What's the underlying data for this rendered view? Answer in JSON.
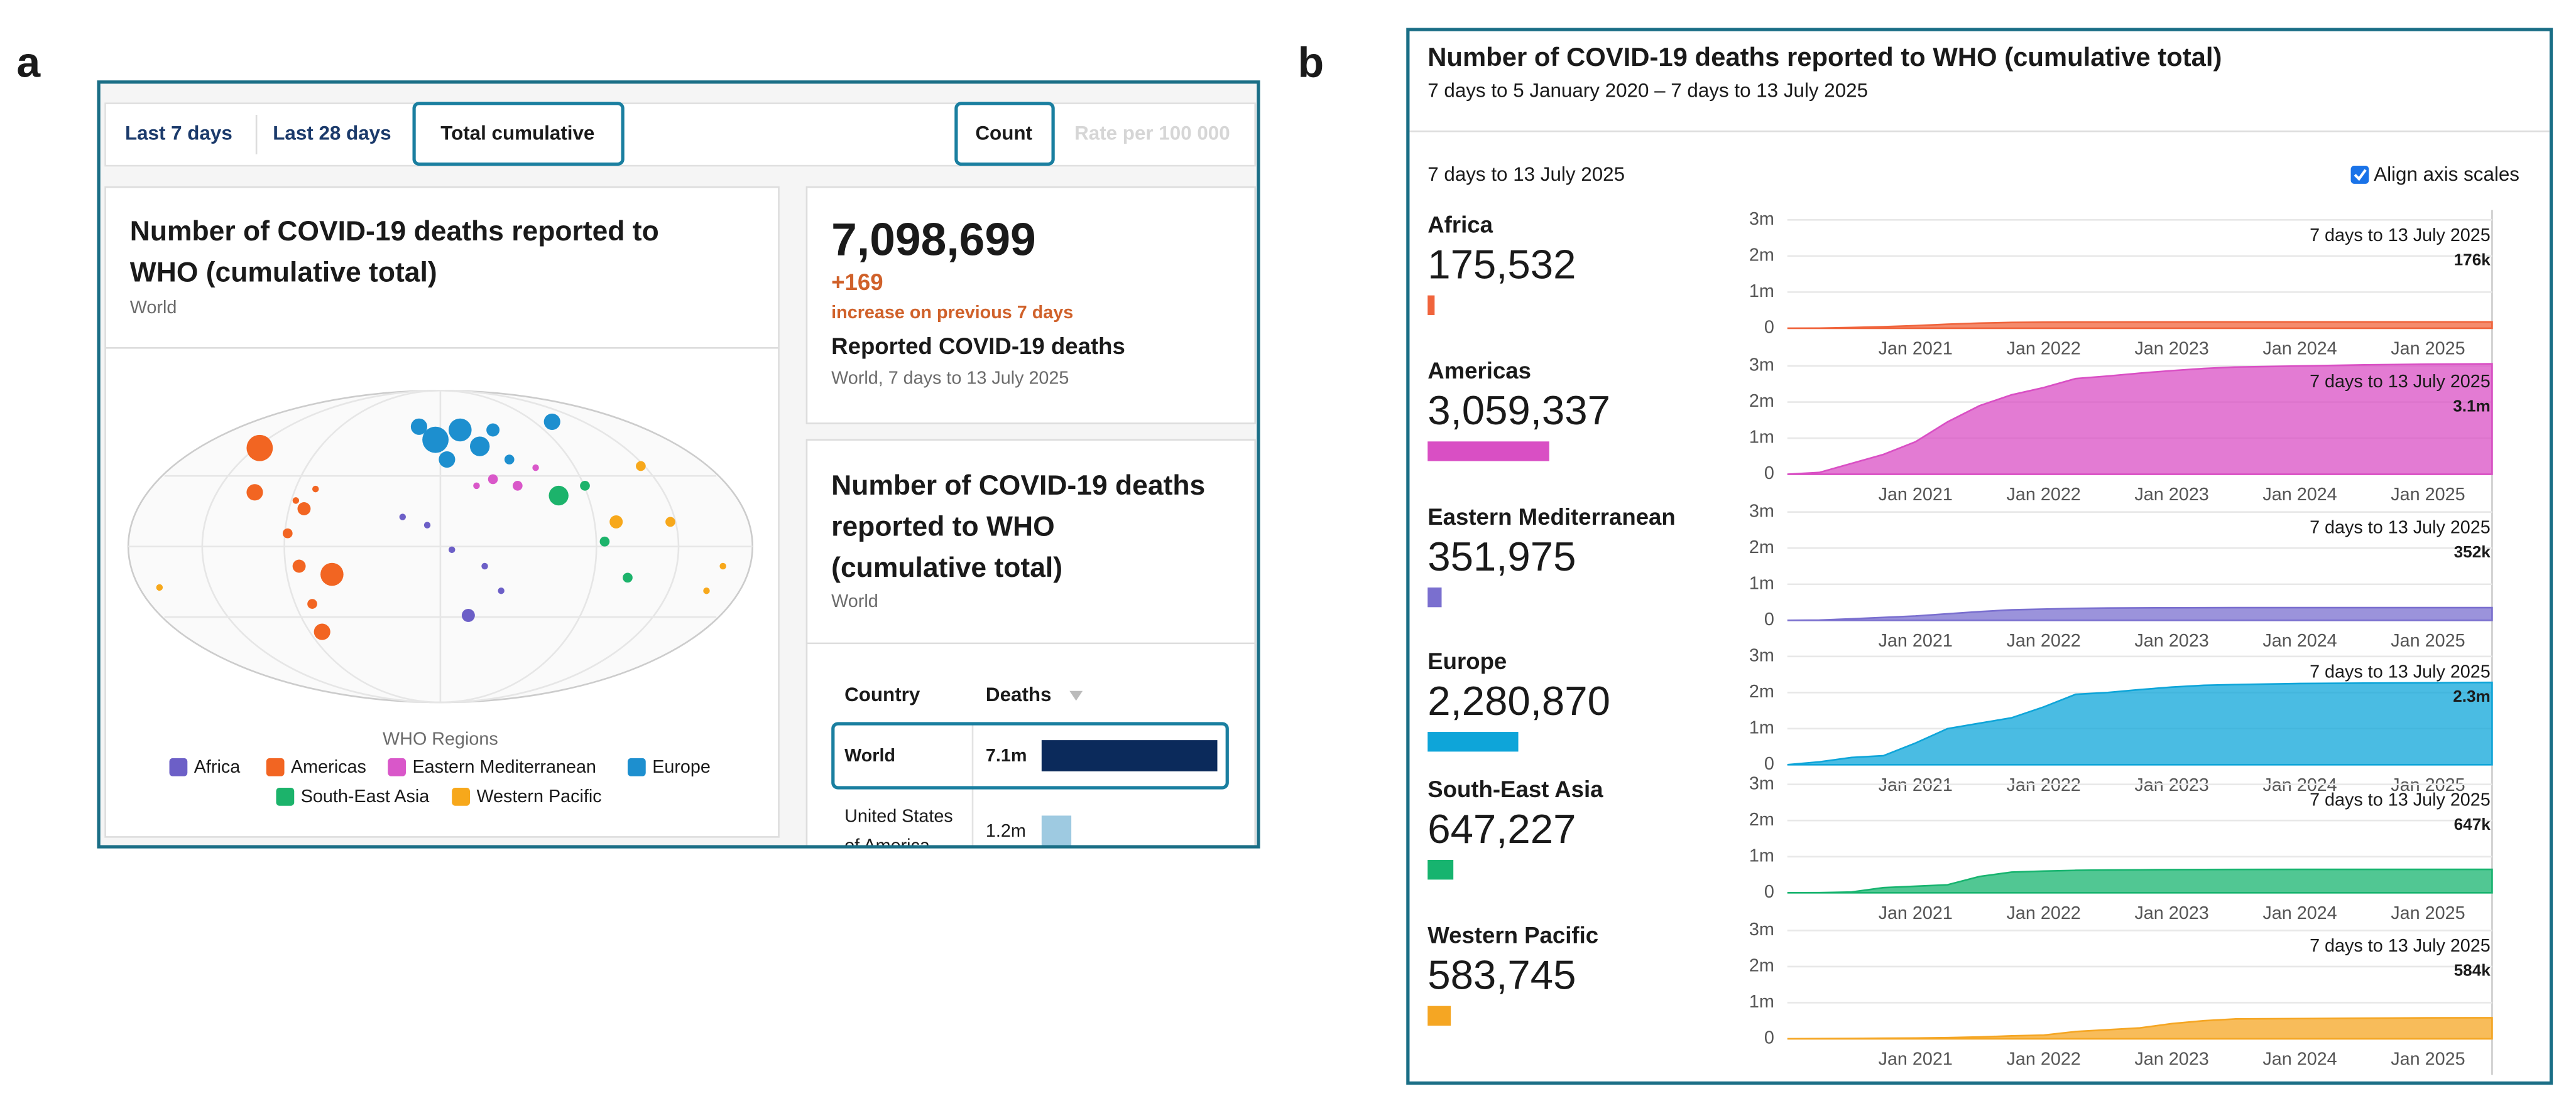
{
  "panel_labels": [
    "a",
    "b"
  ],
  "panel_a": {
    "tabs": [
      "Last 7 days",
      "Last 28 days",
      "Total cumulative"
    ],
    "measures": [
      "Count",
      "Rate per 100 000"
    ],
    "map_card": {
      "title_lines": [
        "Number of COVID-19 deaths reported to",
        "WHO (cumulative total)"
      ],
      "subtitle": "World",
      "legend_title": "WHO Regions",
      "legend": [
        {
          "name": "Africa",
          "color": "#6c5fc7"
        },
        {
          "name": "Americas",
          "color": "#f26522"
        },
        {
          "name": "Eastern Mediterranean",
          "color": "#d957c9"
        },
        {
          "name": "Europe",
          "color": "#1d8fcf"
        },
        {
          "name": "South-East Asia",
          "color": "#1cb36b"
        },
        {
          "name": "Western Pacific",
          "color": "#f7a81b"
        }
      ]
    },
    "stats": {
      "total": "7,098,699",
      "change": "+169",
      "change_note": "increase on previous 7 days",
      "label": "Reported COVID-19 deaths",
      "note": "World, 7 days to 13 July 2025"
    },
    "table_card": {
      "title_lines": [
        "Number of COVID-19 deaths",
        "reported to WHO",
        "(cumulative total)"
      ],
      "subtitle": "World",
      "columns": [
        "Country",
        "Deaths"
      ],
      "rows": [
        {
          "country": [
            "World"
          ],
          "deaths": 7098699,
          "deaths_label": "7.1m",
          "color": "#0b2a5b"
        },
        {
          "country": [
            "United States",
            "of America"
          ],
          "deaths": 1200000,
          "deaths_label": "1.2m",
          "color": "#9ecae1"
        }
      ]
    }
  },
  "panel_b": {
    "title": "Number of COVID-19 deaths reported to WHO (cumulative total)",
    "subtitle": "7 days to 5 January 2020 – 7 days to 13 July 2025",
    "date": "7 days to 13 July 2025",
    "checkbox": "Align axis scales"
  },
  "chart_data": [
    {
      "type": "area",
      "title": "Africa",
      "total": 175532,
      "total_label": "175,532",
      "color": "#f0643c",
      "annotation": "7 days to 13 July 2025",
      "x": [
        "2020-01",
        "2020-04",
        "2020-07",
        "2020-10",
        "2021-01",
        "2021-04",
        "2021-07",
        "2021-10",
        "2022-01",
        "2022-04",
        "2022-07",
        "2022-10",
        "2023-01",
        "2023-04",
        "2023-07",
        "2024-01",
        "2024-07",
        "2025-01",
        "2025-07"
      ],
      "values": [
        0,
        500,
        20000,
        40000,
        70000,
        110000,
        140000,
        160000,
        167000,
        171000,
        172000,
        173000,
        174000,
        175000,
        175000,
        175300,
        175400,
        175500,
        175532
      ],
      "value_labels": [
        null,
        null,
        null,
        null,
        null,
        null,
        null,
        null,
        null,
        null,
        null,
        null,
        null,
        null,
        null,
        null,
        null,
        null,
        "176k"
      ],
      "xlim": [
        "2020-01",
        "2025-07"
      ],
      "xticks": [
        {
          "value": "2021-01",
          "label": "Jan 2021"
        },
        {
          "value": "2022-01",
          "label": "Jan 2022"
        },
        {
          "value": "2023-01",
          "label": "Jan 2023"
        },
        {
          "value": "2024-01",
          "label": "Jan 2024"
        },
        {
          "value": "2025-01",
          "label": "Jan 2025"
        }
      ],
      "ylim": [
        0,
        3000000
      ],
      "yticks": [
        0,
        {
          "value": 1000000,
          "label": "1m"
        },
        {
          "value": 2000000,
          "label": "2m"
        },
        {
          "value": 3000000,
          "label": "3m"
        }
      ]
    },
    {
      "type": "area",
      "title": "Americas",
      "total": 3059337,
      "total_label": "3,059,337",
      "color": "#d94fc4",
      "annotation": "7 days to 13 July 2025",
      "x": [
        "2020-01",
        "2020-04",
        "2020-07",
        "2020-10",
        "2021-01",
        "2021-04",
        "2021-07",
        "2021-10",
        "2022-01",
        "2022-04",
        "2022-07",
        "2022-10",
        "2023-01",
        "2023-04",
        "2023-07",
        "2024-01",
        "2024-07",
        "2025-01",
        "2025-07"
      ],
      "values": [
        0,
        50000,
        300000,
        550000,
        900000,
        1450000,
        1900000,
        2200000,
        2400000,
        2650000,
        2720000,
        2800000,
        2870000,
        2930000,
        2970000,
        3000000,
        3030000,
        3050000,
        3059337
      ],
      "value_labels": [
        null,
        null,
        null,
        null,
        null,
        null,
        null,
        null,
        null,
        null,
        null,
        null,
        null,
        null,
        null,
        null,
        null,
        null,
        "3.1m"
      ],
      "xlim": [
        "2020-01",
        "2025-07"
      ],
      "xticks": [
        {
          "value": "2021-01",
          "label": "Jan 2021"
        },
        {
          "value": "2022-01",
          "label": "Jan 2022"
        },
        {
          "value": "2023-01",
          "label": "Jan 2023"
        },
        {
          "value": "2024-01",
          "label": "Jan 2024"
        },
        {
          "value": "2025-01",
          "label": "Jan 2025"
        }
      ],
      "ylim": [
        0,
        3000000
      ],
      "yticks": [
        0,
        {
          "value": 1000000,
          "label": "1m"
        },
        {
          "value": 2000000,
          "label": "2m"
        },
        {
          "value": 3000000,
          "label": "3m"
        }
      ]
    },
    {
      "type": "area",
      "title": "Eastern Mediterranean",
      "total": 351975,
      "total_label": "351,975",
      "color": "#7a6fcf",
      "annotation": "7 days to 13 July 2025",
      "x": [
        "2020-01",
        "2020-04",
        "2020-07",
        "2020-10",
        "2021-01",
        "2021-04",
        "2021-07",
        "2021-10",
        "2022-01",
        "2022-04",
        "2022-07",
        "2022-10",
        "2023-01",
        "2023-04",
        "2023-07",
        "2024-01",
        "2024-07",
        "2025-01",
        "2025-07"
      ],
      "values": [
        0,
        5000,
        40000,
        80000,
        120000,
        180000,
        240000,
        290000,
        310000,
        330000,
        340000,
        345000,
        348000,
        350000,
        351000,
        351500,
        351800,
        351900,
        351975
      ],
      "value_labels": [
        null,
        null,
        null,
        null,
        null,
        null,
        null,
        null,
        null,
        null,
        null,
        null,
        null,
        null,
        null,
        null,
        null,
        null,
        "352k"
      ],
      "xlim": [
        "2020-01",
        "2025-07"
      ],
      "xticks": [
        {
          "value": "2021-01",
          "label": "Jan 2021"
        },
        {
          "value": "2022-01",
          "label": "Jan 2022"
        },
        {
          "value": "2023-01",
          "label": "Jan 2023"
        },
        {
          "value": "2024-01",
          "label": "Jan 2024"
        },
        {
          "value": "2025-01",
          "label": "Jan 2025"
        }
      ],
      "ylim": [
        0,
        3000000
      ],
      "yticks": [
        0,
        {
          "value": 1000000,
          "label": "1m"
        },
        {
          "value": 2000000,
          "label": "2m"
        },
        {
          "value": 3000000,
          "label": "3m"
        }
      ]
    },
    {
      "type": "area",
      "title": "Europe",
      "total": 2280870,
      "total_label": "2,280,870",
      "color": "#0ea5d9",
      "annotation": "7 days to 13 July 2025",
      "x": [
        "2020-01",
        "2020-04",
        "2020-07",
        "2020-10",
        "2021-01",
        "2021-04",
        "2021-07",
        "2021-10",
        "2022-01",
        "2022-04",
        "2022-07",
        "2022-10",
        "2023-01",
        "2023-04",
        "2023-07",
        "2024-01",
        "2024-07",
        "2025-01",
        "2025-07"
      ],
      "values": [
        0,
        80000,
        200000,
        250000,
        600000,
        1000000,
        1150000,
        1300000,
        1600000,
        1950000,
        2000000,
        2080000,
        2150000,
        2200000,
        2220000,
        2250000,
        2260000,
        2270000,
        2280870
      ],
      "value_labels": [
        null,
        null,
        null,
        null,
        null,
        null,
        null,
        null,
        null,
        null,
        null,
        null,
        null,
        null,
        null,
        null,
        null,
        null,
        "2.3m"
      ],
      "xlim": [
        "2020-01",
        "2025-07"
      ],
      "xticks": [
        {
          "value": "2021-01",
          "label": "Jan 2021"
        },
        {
          "value": "2022-01",
          "label": "Jan 2022"
        },
        {
          "value": "2023-01",
          "label": "Jan 2023"
        },
        {
          "value": "2024-01",
          "label": "Jan 2024"
        },
        {
          "value": "2025-01",
          "label": "Jan 2025"
        }
      ],
      "ylim": [
        0,
        3000000
      ],
      "yticks": [
        0,
        {
          "value": 1000000,
          "label": "1m"
        },
        {
          "value": 2000000,
          "label": "2m"
        },
        {
          "value": 3000000,
          "label": "3m"
        }
      ]
    },
    {
      "type": "area",
      "title": "South-East Asia",
      "total": 647227,
      "total_label": "647,227",
      "color": "#17b46f",
      "annotation": "7 days to 13 July 2025",
      "x": [
        "2020-01",
        "2020-04",
        "2020-07",
        "2020-10",
        "2021-01",
        "2021-04",
        "2021-07",
        "2021-10",
        "2022-01",
        "2022-04",
        "2022-07",
        "2022-10",
        "2023-01",
        "2023-04",
        "2023-07",
        "2024-01",
        "2024-07",
        "2025-01",
        "2025-07"
      ],
      "values": [
        0,
        1000,
        20000,
        140000,
        180000,
        220000,
        450000,
        570000,
        600000,
        620000,
        630000,
        635000,
        640000,
        643000,
        645000,
        646000,
        646500,
        647000,
        647227
      ],
      "value_labels": [
        null,
        null,
        null,
        null,
        null,
        null,
        null,
        null,
        null,
        null,
        null,
        null,
        null,
        null,
        null,
        null,
        null,
        null,
        "647k"
      ],
      "xlim": [
        "2020-01",
        "2025-07"
      ],
      "xticks": [
        {
          "value": "2021-01",
          "label": "Jan 2021"
        },
        {
          "value": "2022-01",
          "label": "Jan 2022"
        },
        {
          "value": "2023-01",
          "label": "Jan 2023"
        },
        {
          "value": "2024-01",
          "label": "Jan 2024"
        },
        {
          "value": "2025-01",
          "label": "Jan 2025"
        }
      ],
      "ylim": [
        0,
        3000000
      ],
      "yticks": [
        0,
        {
          "value": 1000000,
          "label": "1m"
        },
        {
          "value": 2000000,
          "label": "2m"
        },
        {
          "value": 3000000,
          "label": "3m"
        }
      ]
    },
    {
      "type": "area",
      "title": "Western Pacific",
      "total": 583745,
      "total_label": "583,745",
      "color": "#f5a623",
      "annotation": "7 days to 13 July 2025",
      "x": [
        "2020-01",
        "2020-04",
        "2020-07",
        "2020-10",
        "2021-01",
        "2021-04",
        "2021-07",
        "2021-10",
        "2022-01",
        "2022-04",
        "2022-07",
        "2022-10",
        "2023-01",
        "2023-04",
        "2023-07",
        "2024-01",
        "2024-07",
        "2025-01",
        "2025-07"
      ],
      "values": [
        0,
        5000,
        10000,
        15000,
        20000,
        30000,
        50000,
        80000,
        100000,
        200000,
        250000,
        300000,
        420000,
        500000,
        550000,
        560000,
        570000,
        580000,
        583745
      ],
      "value_labels": [
        null,
        null,
        null,
        null,
        null,
        null,
        null,
        null,
        null,
        null,
        null,
        null,
        null,
        null,
        null,
        null,
        null,
        null,
        "584k"
      ],
      "xlim": [
        "2020-01",
        "2025-07"
      ],
      "xticks": [
        {
          "value": "2021-01",
          "label": "Jan 2021"
        },
        {
          "value": "2022-01",
          "label": "Jan 2022"
        },
        {
          "value": "2023-01",
          "label": "Jan 2023"
        },
        {
          "value": "2024-01",
          "label": "Jan 2024"
        },
        {
          "value": "2025-01",
          "label": "Jan 2025"
        }
      ],
      "ylim": [
        0,
        3000000
      ],
      "yticks": [
        0,
        {
          "value": 1000000,
          "label": "1m"
        },
        {
          "value": 2000000,
          "label": "2m"
        },
        {
          "value": 3000000,
          "label": "3m"
        }
      ]
    }
  ]
}
